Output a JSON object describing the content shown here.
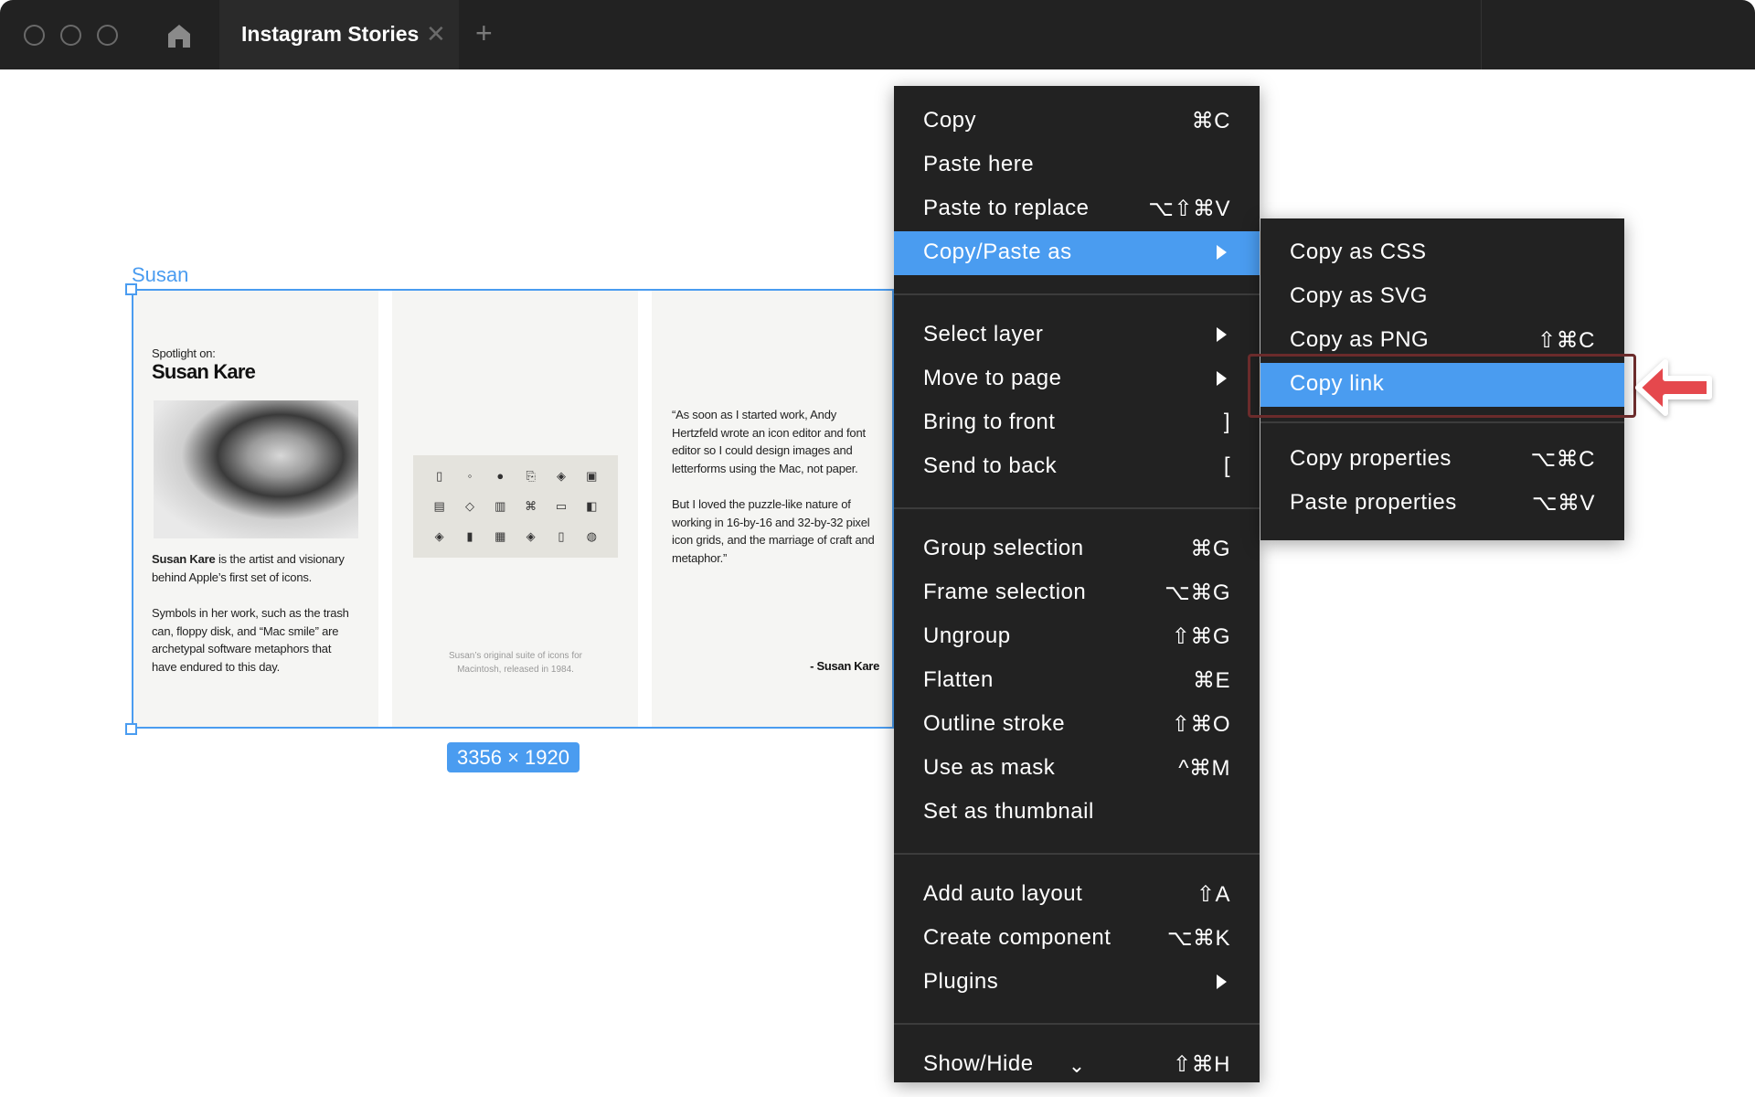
{
  "titlebar": {
    "tab_title": "Instagram Stories",
    "close": "✕",
    "new_tab": "+"
  },
  "canvas": {
    "frame_label": "Susan",
    "dimensions": "3356 × 1920",
    "panel1": {
      "kicker": "Spotlight on:",
      "title": "Susan Kare",
      "para1_bold": "Susan Kare",
      "para1_rest": " is the artist and visionary behind Apple’s first set of icons.",
      "para2": "Symbols in her work, such as the trash can, floppy disk, and “Mac smile” are archetypal software metaphors that have endured to this day."
    },
    "panel2": {
      "caption": "Susan’s original suite of icons for Macintosh, released in 1984.",
      "icons": [
        "▯",
        "◦",
        "●",
        "⎘",
        "◈",
        "▣",
        "▤",
        "◇",
        "▥",
        "⌘",
        "▭",
        "◧",
        "◈",
        "▮",
        "▦",
        "◈",
        "▯",
        "◍"
      ]
    },
    "panel3": {
      "quote1": "“As soon as I started work, Andy Hertzfeld wrote an icon editor and font editor so I could design images and letterforms using the Mac, not paper.",
      "quote2": "But I loved the puzzle-like nature of working in 16-by-16 and 32-by-32 pixel icon grids, and the marriage of craft and metaphor.”",
      "attribution": "- Susan Kare"
    }
  },
  "context_menu": {
    "items": [
      {
        "label": "Copy",
        "shortcut": "⌘C"
      },
      {
        "label": "Paste here",
        "shortcut": ""
      },
      {
        "label": "Paste to replace",
        "shortcut": "⌥⇧⌘V"
      },
      {
        "label": "Copy/Paste as",
        "shortcut": "",
        "submenu": true,
        "highlighted": true
      },
      {
        "separator": true
      },
      {
        "label": "Select layer",
        "shortcut": "",
        "submenu": true
      },
      {
        "label": "Move to page",
        "shortcut": "",
        "submenu": true
      },
      {
        "label": "Bring to front",
        "shortcut": "]"
      },
      {
        "label": "Send to back",
        "shortcut": "["
      },
      {
        "separator": true
      },
      {
        "label": "Group selection",
        "shortcut": "⌘G"
      },
      {
        "label": "Frame selection",
        "shortcut": "⌥⌘G"
      },
      {
        "label": "Ungroup",
        "shortcut": "⇧⌘G"
      },
      {
        "label": "Flatten",
        "shortcut": "⌘E"
      },
      {
        "label": "Outline stroke",
        "shortcut": "⇧⌘O"
      },
      {
        "label": "Use as mask",
        "shortcut": "^⌘M"
      },
      {
        "label": "Set as thumbnail",
        "shortcut": ""
      },
      {
        "separator": true
      },
      {
        "label": "Add auto layout",
        "shortcut": "⇧A"
      },
      {
        "label": "Create component",
        "shortcut": "⌥⌘K"
      },
      {
        "label": "Plugins",
        "shortcut": "",
        "submenu": true
      },
      {
        "separator": true
      },
      {
        "label": "Show/Hide",
        "shortcut": "⇧⌘H"
      }
    ],
    "more_indicator": "⌄"
  },
  "submenu": {
    "items": [
      {
        "label": "Copy as CSS",
        "shortcut": ""
      },
      {
        "label": "Copy as SVG",
        "shortcut": ""
      },
      {
        "label": "Copy as PNG",
        "shortcut": "⇧⌘C"
      },
      {
        "label": "Copy link",
        "shortcut": "",
        "highlighted": true
      },
      {
        "separator": true
      },
      {
        "label": "Copy properties",
        "shortcut": "⌥⌘C"
      },
      {
        "label": "Paste properties",
        "shortcut": "⌥⌘V"
      }
    ]
  },
  "colors": {
    "accent": "#4a9cf0",
    "menu_bg": "#222222",
    "annotation_red": "#e5484d"
  }
}
